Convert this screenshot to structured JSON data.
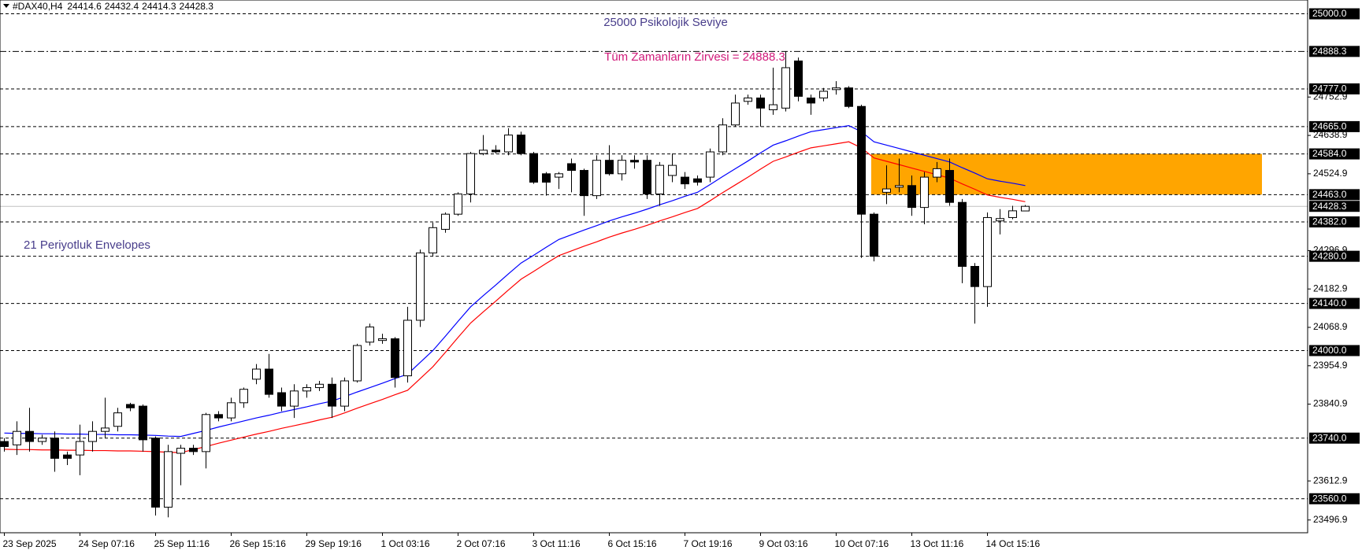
{
  "header": {
    "symbol": "#DAX40,H4",
    "open": 24414.6,
    "high": 24432.4,
    "low": 24414.3,
    "close": 24428.3
  },
  "chart_data": {
    "type": "candlestick",
    "categories": [
      "23 Sep 2025",
      null,
      null,
      null,
      null,
      null,
      "24 Sep 07:16",
      null,
      null,
      null,
      null,
      null,
      "25 Sep 11:16",
      null,
      null,
      null,
      null,
      null,
      "26 Sep 15:16",
      null,
      null,
      null,
      null,
      null,
      "29 Sep 19:16",
      null,
      null,
      null,
      null,
      null,
      "1 Oct 03:16",
      null,
      null,
      null,
      null,
      null,
      "2 Oct 07:16",
      null,
      null,
      null,
      null,
      null,
      "3 Oct 11:16",
      null,
      null,
      null,
      null,
      null,
      "6 Oct 15:16",
      null,
      null,
      null,
      null,
      null,
      "7 Oct 19:16",
      null,
      null,
      null,
      null,
      null,
      "9 Oct 03:16",
      null,
      null,
      null,
      null,
      null,
      "10 Oct 07:16",
      null,
      null,
      null,
      null,
      null,
      "13 Oct 11:16",
      null,
      null,
      null,
      null,
      null,
      "14 Oct 15:16",
      null,
      null,
      null
    ],
    "open": [
      23730,
      23720,
      23760,
      23730,
      23740,
      23690,
      23690,
      23730,
      23760,
      23775,
      23840,
      23835,
      23740,
      23535,
      23695,
      23710,
      23700,
      23810,
      23800,
      23845,
      23915,
      23945,
      23875,
      23835,
      23880,
      23890,
      23900,
      23835,
      23910,
      24025,
      24030,
      24035,
      23925,
      24090,
      24290,
      24360,
      24405,
      24465,
      24585,
      24595,
      24590,
      24640,
      24585,
      24525,
      24515,
      24555,
      24535,
      24460,
      24565,
      24525,
      24565,
      24565,
      24465,
      24520,
      24515,
      24510,
      24515,
      24590,
      24670,
      24740,
      24750,
      24715,
      24720,
      24860,
      24750,
      24750,
      24775,
      24780,
      24725,
      24405,
      24470,
      24485,
      24490,
      24425,
      24515,
      24535,
      24440,
      24250,
      24190,
      24385,
      24395,
      24414.6
    ],
    "high": [
      23740,
      23790,
      23830,
      23750,
      23760,
      23700,
      23780,
      23790,
      23860,
      23830,
      23845,
      23840,
      23745,
      23720,
      23720,
      23720,
      23815,
      23820,
      23860,
      23890,
      23960,
      23990,
      23890,
      23900,
      23900,
      23910,
      23920,
      23920,
      24020,
      24080,
      24050,
      24040,
      24130,
      24300,
      24380,
      24410,
      24470,
      24590,
      24640,
      24610,
      24660,
      24650,
      24590,
      24530,
      24530,
      24570,
      24540,
      24580,
      24610,
      24580,
      24580,
      24580,
      24560,
      24585,
      24530,
      24520,
      24600,
      24690,
      24760,
      24760,
      24760,
      24840,
      24888.3,
      24870,
      24760,
      24780,
      24800,
      24785,
      24730,
      24410,
      24550,
      24570,
      24520,
      24530,
      24560,
      24570,
      24450,
      24260,
      24410,
      24420,
      24430,
      24432.4
    ],
    "low": [
      23700,
      23690,
      23700,
      23720,
      23640,
      23660,
      23630,
      23700,
      23740,
      23760,
      23820,
      23700,
      23510,
      23505,
      23600,
      23690,
      23650,
      23790,
      23790,
      23830,
      23900,
      23860,
      23820,
      23800,
      23860,
      23880,
      23800,
      23820,
      23905,
      24015,
      24020,
      23890,
      23905,
      24070,
      24280,
      24350,
      24400,
      24440,
      24580,
      24585,
      24580,
      24580,
      24495,
      24460,
      24480,
      24470,
      24400,
      24450,
      24520,
      24505,
      24540,
      24450,
      24430,
      24500,
      24480,
      24490,
      24500,
      24580,
      24665,
      24730,
      24665,
      24700,
      24710,
      24740,
      24700,
      24740,
      24760,
      24720,
      24275,
      24265,
      24435,
      24470,
      24400,
      24375,
      24500,
      24430,
      24200,
      24080,
      24130,
      24345,
      24390,
      24414.3
    ],
    "close": [
      23715,
      23760,
      23730,
      23740,
      23680,
      23680,
      23730,
      23760,
      23770,
      23815,
      23830,
      23735,
      23535,
      23700,
      23710,
      23700,
      23810,
      23800,
      23845,
      23885,
      23945,
      23870,
      23835,
      23880,
      23890,
      23900,
      23835,
      23910,
      24015,
      24070,
      24035,
      23920,
      24090,
      24290,
      24365,
      24405,
      24465,
      24585,
      24595,
      24590,
      24640,
      24585,
      24500,
      24500,
      24525,
      24535,
      24460,
      24565,
      24525,
      24565,
      24560,
      24465,
      24550,
      24550,
      24495,
      24500,
      24590,
      24670,
      24735,
      24750,
      24720,
      24730,
      24840,
      24755,
      24735,
      24770,
      24780,
      24725,
      24405,
      24280,
      24480,
      24490,
      24425,
      24515,
      24540,
      24440,
      24250,
      24190,
      24395,
      24392,
      24415,
      24428.3
    ],
    "up_color": "#ffffff",
    "down_color": "#000000",
    "envelopes": {
      "upper": {
        "color": "#0000ff",
        "values": [
          23755,
          23754,
          23754,
          23753,
          23753,
          23752,
          23752,
          23751,
          23751,
          23750,
          23750,
          23749,
          23748,
          23746,
          23745,
          23754,
          23763,
          23773,
          23782,
          23791,
          23800,
          23808,
          23817,
          23825,
          23833,
          23842,
          23850,
          23863,
          23877,
          23890,
          23903,
          23917,
          23930,
          23965,
          24000,
          24043,
          24087,
          24130,
          24163,
          24195,
          24228,
          24260,
          24283,
          24307,
          24330,
          24344,
          24358,
          24371,
          24385,
          24397,
          24408,
          24420,
          24433,
          24445,
          24458,
          24470,
          24493,
          24517,
          24540,
          24563,
          24587,
          24610,
          24623,
          24637,
          24650,
          24656,
          24662,
          24668,
          24650,
          24620,
          24610,
          24600,
          24590,
          24580,
          24570,
          24560,
          24543,
          24527,
          24510,
          24503,
          24497,
          24490
        ]
      },
      "lower": {
        "color": "#ff0000",
        "values": [
          23707,
          23706,
          23706,
          23705,
          23705,
          23704,
          23704,
          23703,
          23703,
          23702,
          23702,
          23701,
          23700,
          23698,
          23697,
          23706,
          23715,
          23725,
          23734,
          23743,
          23752,
          23760,
          23769,
          23777,
          23785,
          23794,
          23802,
          23815,
          23829,
          23842,
          23855,
          23869,
          23882,
          23917,
          23952,
          23995,
          24039,
          24082,
          24115,
          24147,
          24180,
          24212,
          24235,
          24259,
          24282,
          24296,
          24310,
          24323,
          24337,
          24349,
          24360,
          24372,
          24385,
          24397,
          24410,
          24422,
          24445,
          24469,
          24492,
          24515,
          24539,
          24562,
          24575,
          24589,
          24602,
          24608,
          24614,
          24620,
          24602,
          24572,
          24562,
          24552,
          24542,
          24532,
          24522,
          24512,
          24495,
          24479,
          24462,
          24455,
          24449,
          24442
        ]
      }
    },
    "levels": [
      {
        "value": 25000,
        "label": "25000.0",
        "style": "dash"
      },
      {
        "value": 24888.3,
        "label": "24888.3",
        "style": "dash-dot"
      },
      {
        "value": 24777,
        "label": "24777.0",
        "style": "dash"
      },
      {
        "value": 24665,
        "label": "24665.0",
        "style": "dash"
      },
      {
        "value": 24584,
        "label": "24584.0",
        "style": "dash"
      },
      {
        "value": 24463,
        "label": "24463.0",
        "style": "dash"
      },
      {
        "value": 24382,
        "label": "24382.0",
        "style": "dash"
      },
      {
        "value": 24280,
        "label": "24280.0",
        "style": "dash"
      },
      {
        "value": 24140,
        "label": "24140.0",
        "style": "dash"
      },
      {
        "value": 24000,
        "label": "24000.0",
        "style": "dash"
      },
      {
        "value": 23740,
        "label": "23740.0",
        "style": "dash"
      },
      {
        "value": 23560,
        "label": "23560.0",
        "style": "dash"
      }
    ],
    "current_price": 24428.3,
    "zone": {
      "top": 24584,
      "bottom": 24463,
      "color": "#ffa500"
    },
    "annotations": [
      {
        "text": "25000 Psikolojik Seviye",
        "color": "#483d8b"
      },
      {
        "text": "Tüm Zamanların Zirvesi = 24888.3",
        "color": "#d11a7a"
      },
      {
        "text": "21 Periyotluk Envelopes",
        "color": "#483d8b"
      }
    ],
    "ylim": [
      23459,
      25041
    ],
    "yticks": [
      24752.9,
      24638.9,
      24524.9,
      24296.9,
      24182.9,
      24068.9,
      23954.9,
      23840.9,
      23612.9,
      23496.9
    ]
  }
}
